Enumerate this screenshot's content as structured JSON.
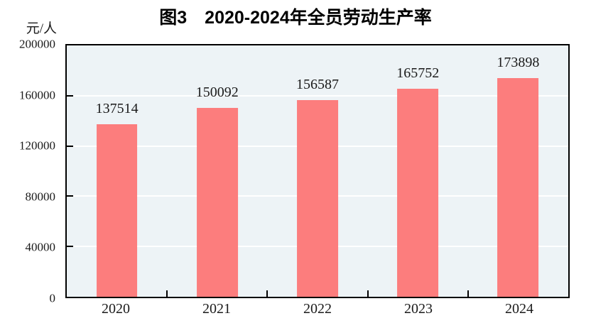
{
  "chart_data": {
    "type": "bar",
    "title": "图3　2020-2024年全员劳动生产率",
    "ylabel": "元/人",
    "xlabel": "",
    "categories": [
      "2020",
      "2021",
      "2022",
      "2023",
      "2024"
    ],
    "values": [
      137514,
      150092,
      156587,
      165752,
      173898
    ],
    "data_labels": [
      "137514",
      "150092",
      "156587",
      "165752",
      "173898"
    ],
    "ylim": [
      0,
      200000
    ],
    "yticks": [
      0,
      40000,
      80000,
      120000,
      160000,
      200000
    ],
    "ytick_labels": [
      "0",
      "40000",
      "80000",
      "120000",
      "160000",
      "200000"
    ],
    "grid": true,
    "legend_position": "none",
    "colors": {
      "bar": "#fc7d7d",
      "plot_background": "#edf3f6",
      "gridline": "#ffffff",
      "axis": "#000000",
      "text": "#1a1a1a"
    }
  }
}
